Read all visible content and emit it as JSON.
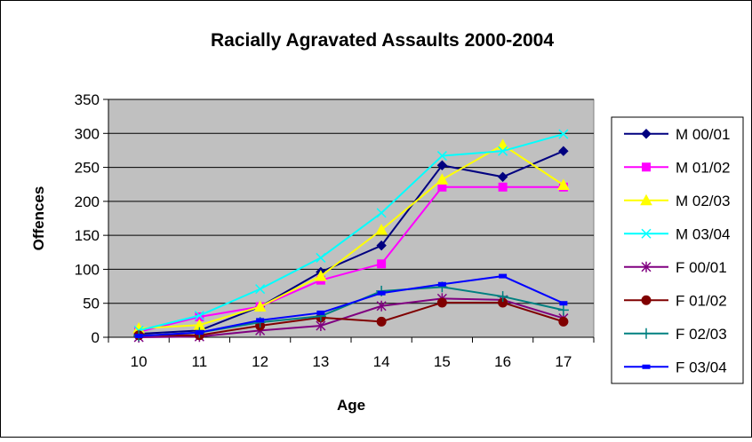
{
  "chart_data": {
    "type": "line",
    "title": "Racially Agravated Assaults 2000-2004",
    "xlabel": "Age",
    "ylabel": "Offences",
    "categories": [
      "10",
      "11",
      "12",
      "13",
      "14",
      "15",
      "16",
      "17"
    ],
    "ylim": [
      0,
      350
    ],
    "yticks": [
      0,
      50,
      100,
      150,
      200,
      250,
      300,
      350
    ],
    "grid": true,
    "legend_position": "right",
    "plot_background": "#c0c0c0",
    "series": [
      {
        "name": "M 00/01",
        "color": "#000080",
        "marker": "diamond",
        "values": [
          5,
          10,
          45,
          96,
          135,
          253,
          236,
          274
        ]
      },
      {
        "name": "M 01/02",
        "color": "#ff00ff",
        "marker": "square",
        "values": [
          8,
          30,
          45,
          84,
          108,
          221,
          221,
          221
        ]
      },
      {
        "name": "M 02/03",
        "color": "#ffff00",
        "marker": "triangle",
        "values": [
          13,
          18,
          45,
          90,
          158,
          232,
          283,
          224
        ]
      },
      {
        "name": "M 03/04",
        "color": "#00ffff",
        "marker": "x",
        "values": [
          10,
          32,
          71,
          117,
          183,
          267,
          274,
          299
        ]
      },
      {
        "name": "F 00/01",
        "color": "#800080",
        "marker": "star",
        "values": [
          0,
          1,
          10,
          17,
          46,
          57,
          55,
          28
        ]
      },
      {
        "name": "F 01/02",
        "color": "#800000",
        "marker": "circle",
        "values": [
          3,
          3,
          17,
          29,
          23,
          51,
          51,
          23
        ]
      },
      {
        "name": "F 02/03",
        "color": "#008080",
        "marker": "plus",
        "values": [
          2,
          7,
          22,
          31,
          68,
          74,
          60,
          40
        ]
      },
      {
        "name": "F 03/04",
        "color": "#0000ff",
        "marker": "dash",
        "values": [
          2,
          7,
          25,
          36,
          65,
          78,
          90,
          50
        ]
      }
    ]
  }
}
